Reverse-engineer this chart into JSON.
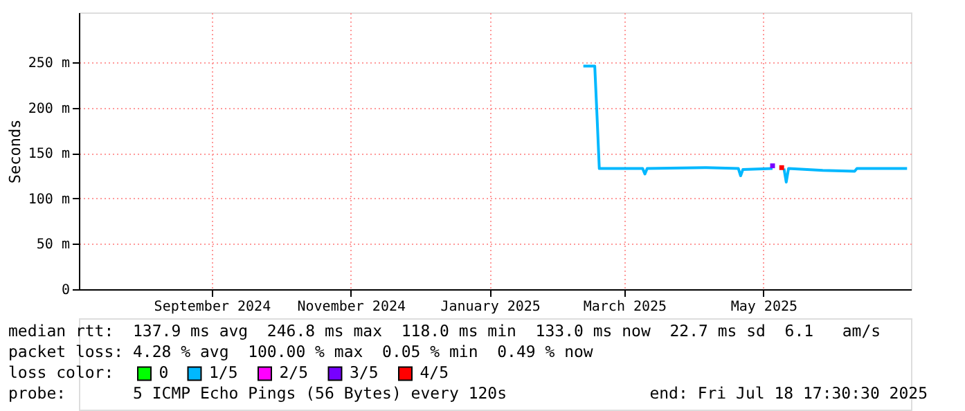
{
  "chart_data": {
    "type": "line",
    "ylabel": "Seconds",
    "legend_title": "loss color:",
    "xlim": [
      "2024-07-18T17:30",
      "2025-07-18T17:30"
    ],
    "xticks": [
      {
        "value": "2024-09-15",
        "label": "September 2024"
      },
      {
        "value": "2024-11-15",
        "label": "November 2024"
      },
      {
        "value": "2025-01-15",
        "label": "January 2025"
      },
      {
        "value": "2025-03-15",
        "label": "March 2025"
      },
      {
        "value": "2025-05-15",
        "label": "May 2025"
      }
    ],
    "ylim": [
      0,
      305
    ],
    "yticks": [
      0,
      {
        "value": 50,
        "label": "50 m"
      },
      {
        "value": 100,
        "label": "100 m"
      },
      {
        "value": 150,
        "label": "150 m"
      },
      {
        "value": 200,
        "label": "200 m"
      },
      {
        "value": 250,
        "label": "250 m"
      }
    ],
    "grid": true,
    "legend": "bottom",
    "series": [
      {
        "name": "0",
        "color": "#00ff00"
      },
      {
        "name": "1/5",
        "color": "#00b8ff",
        "x": [
          "2025-02-25",
          "2025-03-02",
          "2025-03-03",
          "2025-03-04",
          "2025-03-23",
          "2025-03-24",
          "2025-03-25",
          "2025-04-20",
          "2025-05-04",
          "2025-05-05",
          "2025-05-06",
          "2025-05-19",
          "2025-05-20",
          "2025-05-24",
          "2025-05-25",
          "2025-05-26",
          "2025-06-10",
          "2025-06-24",
          "2025-06-25",
          "2025-07-17"
        ],
        "values": [
          246,
          246,
          191,
          133,
          133,
          127,
          133,
          134,
          133,
          125,
          132,
          133,
          null,
          133,
          118,
          133,
          131,
          130,
          133,
          133
        ]
      },
      {
        "name": "2/5",
        "color": "#ff00ff"
      },
      {
        "name": "3/5",
        "color": "#7700ff",
        "type": "scatter",
        "x": [
          "2025-05-19"
        ],
        "values": [
          136
        ]
      },
      {
        "name": "4/5",
        "color": "#ff0000",
        "type": "scatter",
        "x": [
          "2025-05-23"
        ],
        "values": [
          134
        ]
      }
    ],
    "annotations": [
      "median rtt:  137.9 ms avg  246.8 ms max  118.0 ms min  133.0 ms now  22.7 ms sd  6.1   am/s",
      "packet loss: 4.28 % avg  100.00 % max  0.05 % min  0.49 % now",
      "probe:       5 ICMP Echo Pings (56 Bytes) every 120s",
      "end: Fri Jul 18 17:30:30 2025"
    ]
  }
}
